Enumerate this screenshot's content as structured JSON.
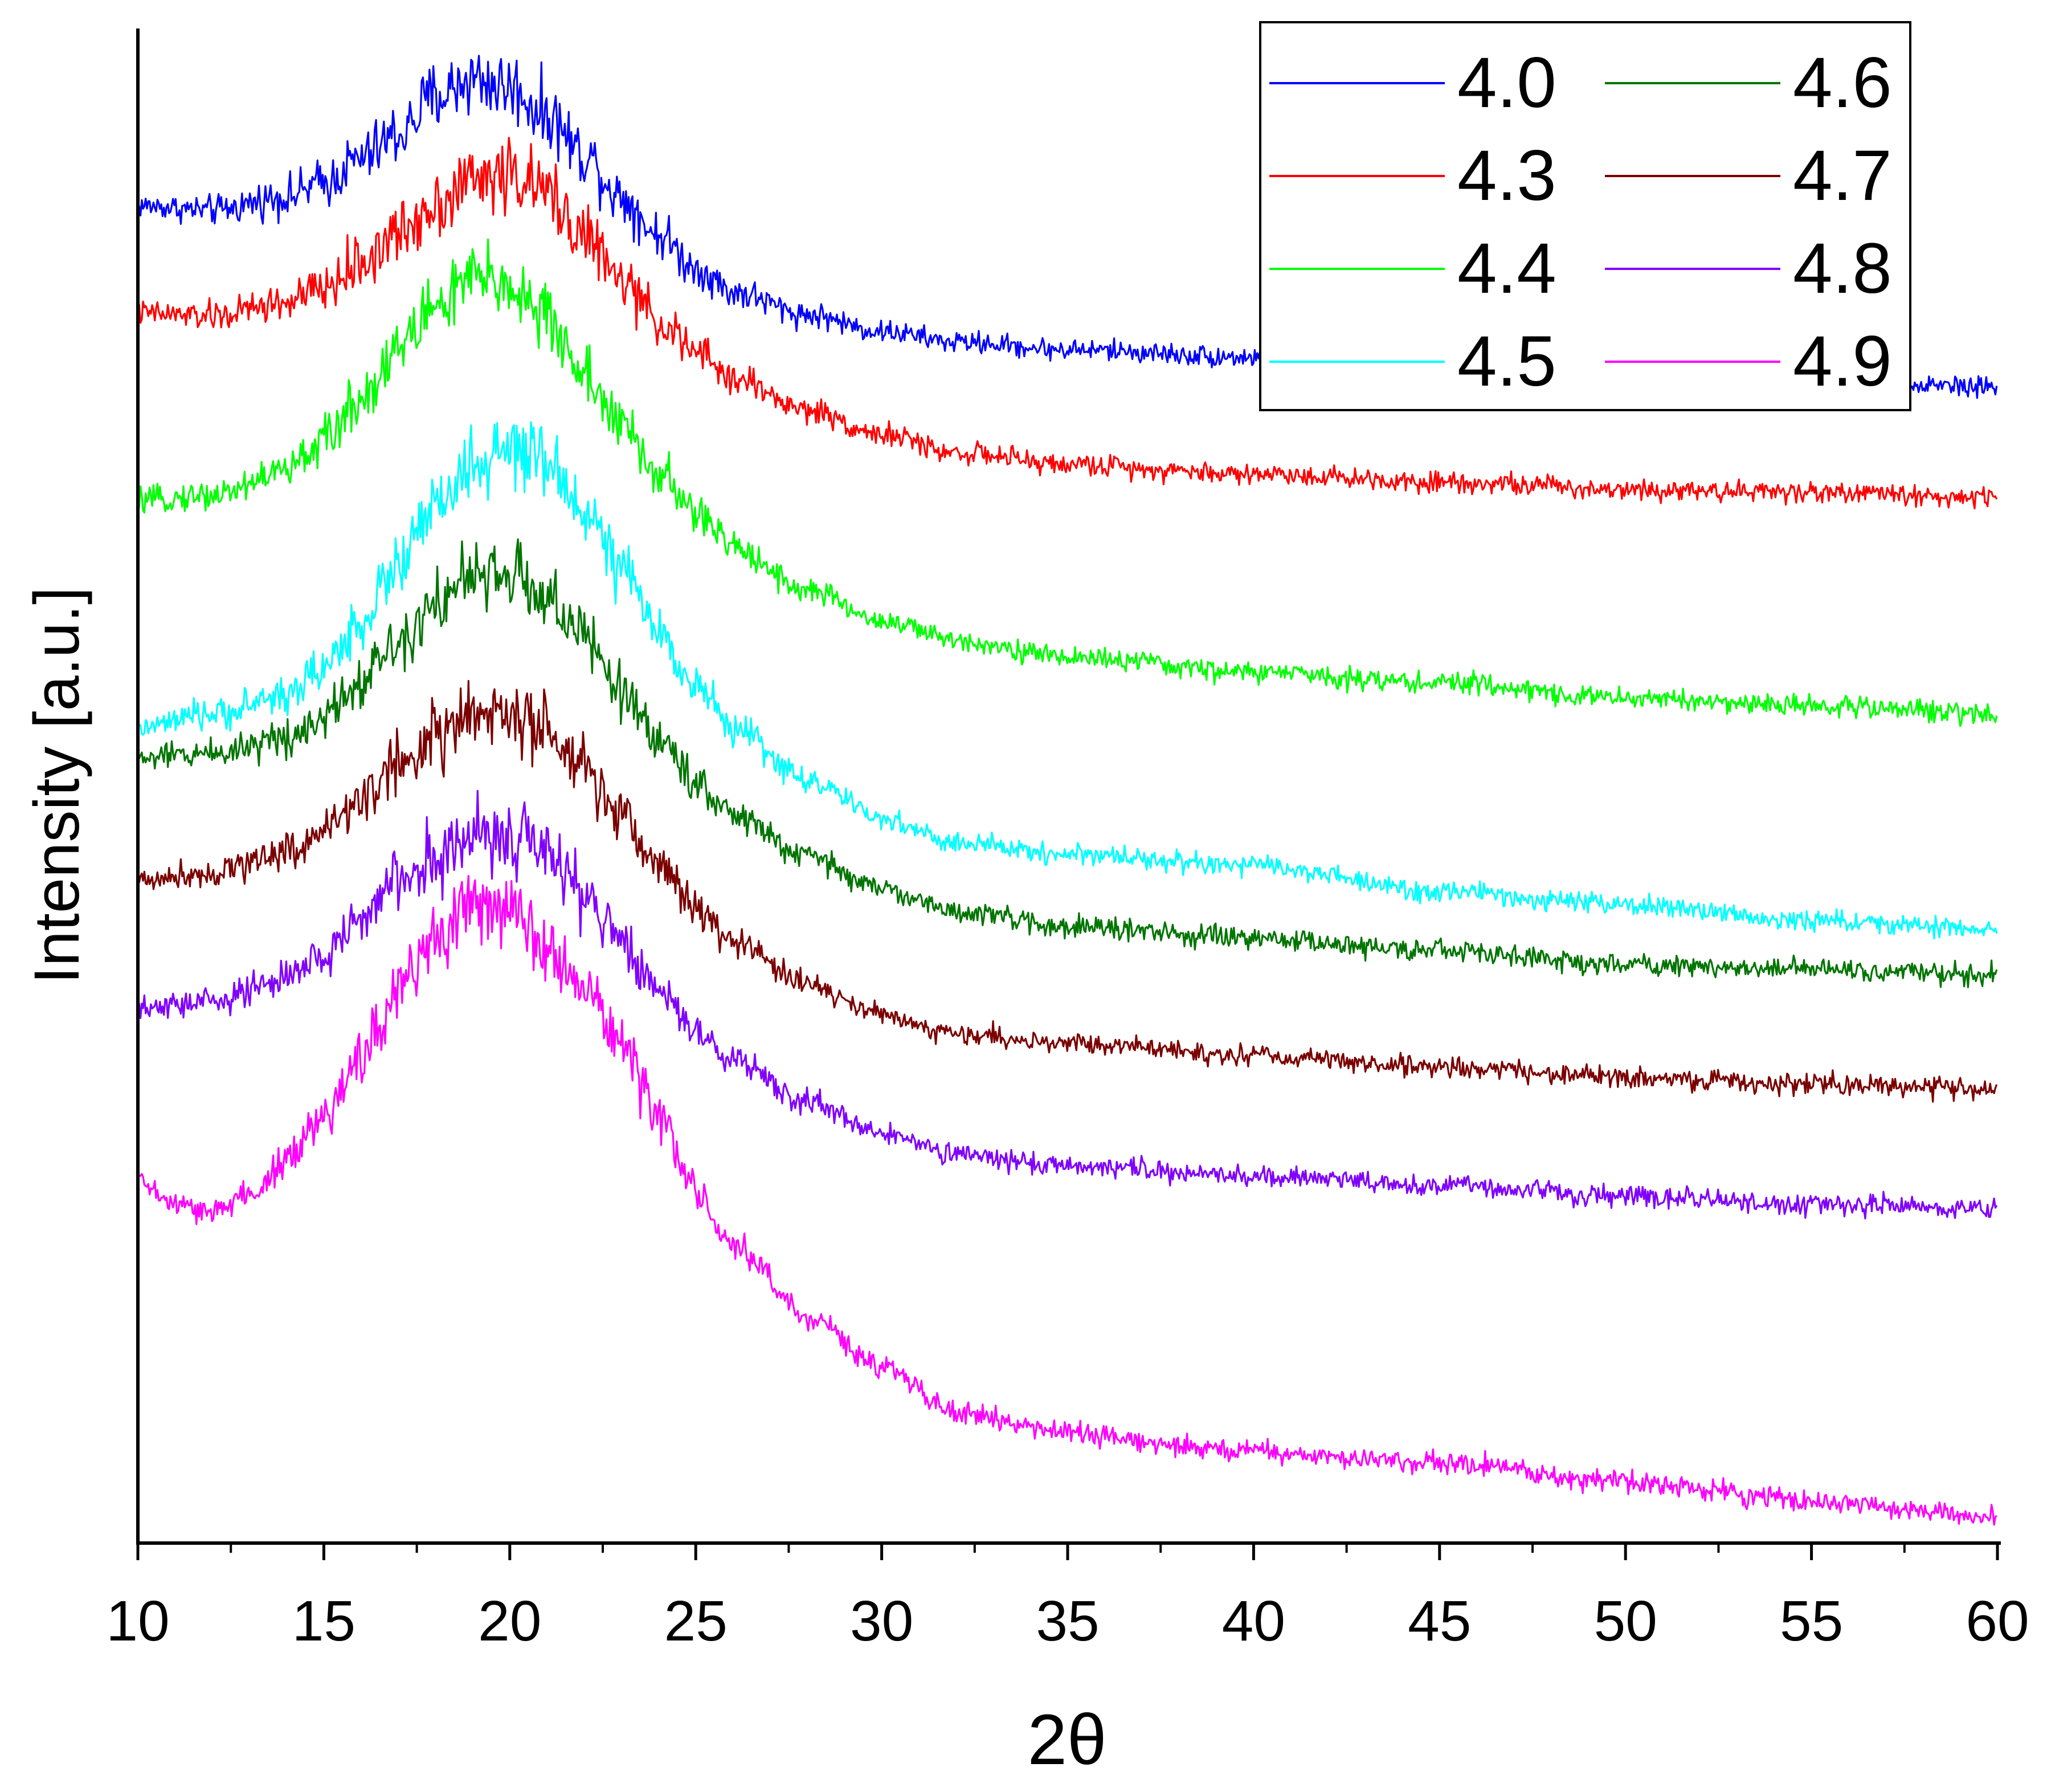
{
  "chart_data": {
    "type": "line",
    "xlabel": "2θ",
    "ylabel": "Intensity [a.u.]",
    "xlim": [
      10,
      60
    ],
    "x_ticks": [
      10,
      15,
      20,
      25,
      30,
      35,
      40,
      45,
      50,
      55,
      60
    ],
    "y_ticks_shown": false,
    "grid": false,
    "legend_position": "top-right",
    "legend_columns": 2,
    "y_units": "arbitrary, curves vertically stacked",
    "series": [
      {
        "name": "4.0",
        "color": "#0000ff",
        "points": [
          [
            10,
            0.883
          ],
          [
            12,
            0.88
          ],
          [
            14,
            0.889
          ],
          [
            15,
            0.898
          ],
          [
            16,
            0.914
          ],
          [
            17,
            0.93
          ],
          [
            18,
            0.955
          ],
          [
            19,
            0.967
          ],
          [
            20,
            0.961
          ],
          [
            21,
            0.943
          ],
          [
            22,
            0.917
          ],
          [
            23,
            0.889
          ],
          [
            24,
            0.864
          ],
          [
            25,
            0.842
          ],
          [
            26,
            0.826
          ],
          [
            28,
            0.811
          ],
          [
            30,
            0.8
          ],
          [
            32,
            0.793
          ],
          [
            35,
            0.788
          ],
          [
            40,
            0.783
          ],
          [
            45,
            0.778
          ],
          [
            50,
            0.772
          ],
          [
            55,
            0.768
          ],
          [
            60,
            0.764
          ]
        ]
      },
      {
        "name": "4.3",
        "color": "#ff0000",
        "points": [
          [
            10,
            0.812
          ],
          [
            12,
            0.81
          ],
          [
            14,
            0.819
          ],
          [
            15,
            0.828
          ],
          [
            16,
            0.845
          ],
          [
            17,
            0.864
          ],
          [
            18,
            0.885
          ],
          [
            19,
            0.9
          ],
          [
            20,
            0.904
          ],
          [
            21,
            0.891
          ],
          [
            22,
            0.864
          ],
          [
            23,
            0.833
          ],
          [
            24,
            0.807
          ],
          [
            25,
            0.786
          ],
          [
            26,
            0.769
          ],
          [
            28,
            0.748
          ],
          [
            30,
            0.732
          ],
          [
            32,
            0.72
          ],
          [
            35,
            0.712
          ],
          [
            40,
            0.706
          ],
          [
            45,
            0.701
          ],
          [
            50,
            0.696
          ],
          [
            55,
            0.694
          ],
          [
            60,
            0.69
          ]
        ]
      },
      {
        "name": "4.4",
        "color": "#00ff00",
        "points": [
          [
            10,
            0.688
          ],
          [
            12,
            0.692
          ],
          [
            14,
            0.708
          ],
          [
            15,
            0.728
          ],
          [
            16,
            0.756
          ],
          [
            17,
            0.789
          ],
          [
            18,
            0.817
          ],
          [
            19,
            0.834
          ],
          [
            20,
            0.831
          ],
          [
            21,
            0.808
          ],
          [
            22,
            0.773
          ],
          [
            23,
            0.737
          ],
          [
            24,
            0.706
          ],
          [
            25,
            0.68
          ],
          [
            26,
            0.658
          ],
          [
            28,
            0.629
          ],
          [
            30,
            0.609
          ],
          [
            32,
            0.596
          ],
          [
            35,
            0.585
          ],
          [
            40,
            0.575
          ],
          [
            45,
            0.568
          ],
          [
            50,
            0.558
          ],
          [
            55,
            0.553
          ],
          [
            60,
            0.548
          ]
        ]
      },
      {
        "name": "4.5",
        "color": "#00ffff",
        "points": [
          [
            10,
            0.538
          ],
          [
            12,
            0.547
          ],
          [
            14,
            0.56
          ],
          [
            15,
            0.578
          ],
          [
            16,
            0.608
          ],
          [
            17,
            0.646
          ],
          [
            18,
            0.683
          ],
          [
            19,
            0.71
          ],
          [
            20,
            0.72
          ],
          [
            21,
            0.712
          ],
          [
            22,
            0.683
          ],
          [
            23,
            0.643
          ],
          [
            24,
            0.601
          ],
          [
            25,
            0.567
          ],
          [
            26,
            0.538
          ],
          [
            28,
            0.504
          ],
          [
            30,
            0.478
          ],
          [
            32,
            0.462
          ],
          [
            35,
            0.455
          ],
          [
            40,
            0.447
          ],
          [
            45,
            0.43
          ],
          [
            50,
            0.421
          ],
          [
            55,
            0.411
          ],
          [
            60,
            0.405
          ]
        ]
      },
      {
        "name": "4.6",
        "color": "#007500",
        "points": [
          [
            10,
            0.518
          ],
          [
            12,
            0.522
          ],
          [
            14,
            0.532
          ],
          [
            15,
            0.547
          ],
          [
            16,
            0.57
          ],
          [
            17,
            0.597
          ],
          [
            18,
            0.622
          ],
          [
            19,
            0.637
          ],
          [
            20,
            0.639
          ],
          [
            21,
            0.625
          ],
          [
            22,
            0.597
          ],
          [
            23,
            0.563
          ],
          [
            24,
            0.531
          ],
          [
            25,
            0.504
          ],
          [
            26,
            0.48
          ],
          [
            28,
            0.453
          ],
          [
            30,
            0.432
          ],
          [
            32,
            0.417
          ],
          [
            35,
            0.407
          ],
          [
            40,
            0.399
          ],
          [
            45,
            0.391
          ],
          [
            50,
            0.382
          ],
          [
            55,
            0.379
          ],
          [
            60,
            0.375
          ]
        ]
      },
      {
        "name": "4.7",
        "color": "#7b0000",
        "points": [
          [
            10,
            0.438
          ],
          [
            12,
            0.443
          ],
          [
            14,
            0.457
          ],
          [
            15,
            0.47
          ],
          [
            16,
            0.492
          ],
          [
            17,
            0.514
          ],
          [
            18,
            0.533
          ],
          [
            19,
            0.545
          ],
          [
            20,
            0.547
          ],
          [
            21,
            0.533
          ],
          [
            22,
            0.508
          ],
          [
            23,
            0.479
          ],
          [
            24,
            0.449
          ],
          [
            25,
            0.42
          ],
          [
            26,
            0.397
          ],
          [
            28,
            0.369
          ],
          [
            30,
            0.349
          ],
          [
            32,
            0.336
          ],
          [
            35,
            0.33
          ],
          [
            40,
            0.322
          ],
          [
            45,
            0.314
          ],
          [
            50,
            0.307
          ],
          [
            55,
            0.303
          ],
          [
            60,
            0.3
          ]
        ]
      },
      {
        "name": "4.8",
        "color": "#8000ff",
        "points": [
          [
            10,
            0.352
          ],
          [
            12,
            0.358
          ],
          [
            14,
            0.372
          ],
          [
            15,
            0.388
          ],
          [
            16,
            0.413
          ],
          [
            17,
            0.437
          ],
          [
            18,
            0.454
          ],
          [
            19,
            0.466
          ],
          [
            20,
            0.468
          ],
          [
            21,
            0.454
          ],
          [
            22,
            0.428
          ],
          [
            23,
            0.397
          ],
          [
            24,
            0.366
          ],
          [
            25,
            0.34
          ],
          [
            26,
            0.318
          ],
          [
            28,
            0.292
          ],
          [
            30,
            0.27
          ],
          [
            32,
            0.256
          ],
          [
            35,
            0.249
          ],
          [
            40,
            0.242
          ],
          [
            45,
            0.236
          ],
          [
            50,
            0.229
          ],
          [
            55,
            0.224
          ],
          [
            60,
            0.221
          ]
        ]
      },
      {
        "name": "4.9",
        "color": "#ff00ff",
        "points": [
          [
            10,
            0.24
          ],
          [
            11,
            0.223
          ],
          [
            12,
            0.218
          ],
          [
            13,
            0.231
          ],
          [
            14,
            0.252
          ],
          [
            15,
            0.28
          ],
          [
            16,
            0.322
          ],
          [
            17,
            0.365
          ],
          [
            18,
            0.402
          ],
          [
            19,
            0.421
          ],
          [
            20,
            0.415
          ],
          [
            21,
            0.398
          ],
          [
            22,
            0.369
          ],
          [
            23,
            0.33
          ],
          [
            24,
            0.28
          ],
          [
            25,
            0.232
          ],
          [
            26,
            0.196
          ],
          [
            28,
            0.15
          ],
          [
            30,
            0.116
          ],
          [
            32,
            0.086
          ],
          [
            35,
            0.072
          ],
          [
            40,
            0.06
          ],
          [
            45,
            0.053
          ],
          [
            50,
            0.041
          ],
          [
            55,
            0.028
          ],
          [
            60,
            0.017
          ]
        ]
      }
    ]
  }
}
